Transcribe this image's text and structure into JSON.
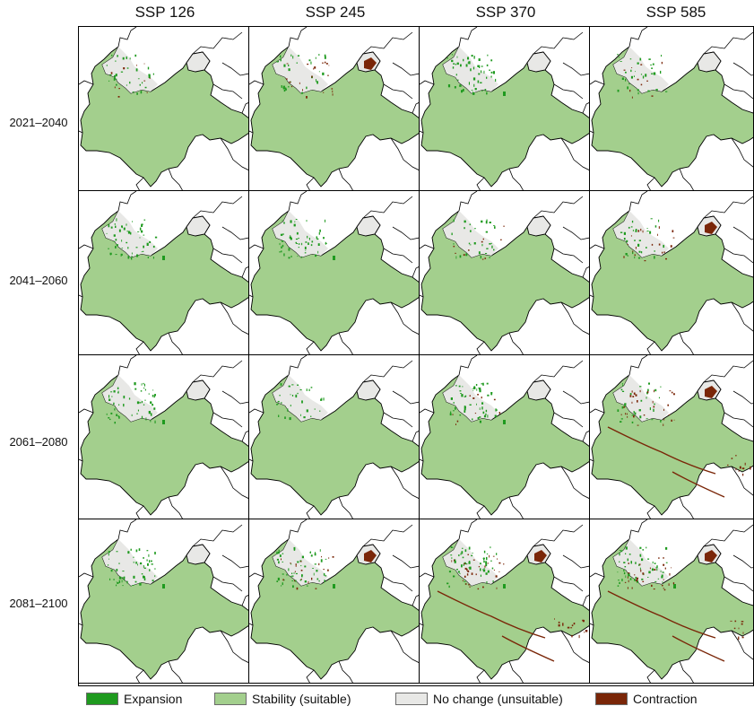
{
  "columns": [
    "SSP 126",
    "SSP 245",
    "SSP 370",
    "SSP 585"
  ],
  "rows": [
    "2021–2040",
    "2041–2060",
    "2061–2080",
    "2081–2100"
  ],
  "legend": [
    {
      "label": "Expansion",
      "color": "#1f9a1f"
    },
    {
      "label": "Stability (suitable)",
      "color": "#a3cf8d"
    },
    {
      "label": "No change (unsuitable)",
      "color": "#e8e8e6"
    },
    {
      "label": "Contraction",
      "color": "#7a2608"
    }
  ],
  "colors": {
    "border": "#000000",
    "background": "#ffffff"
  },
  "panel_change": [
    [
      {
        "expansion": "low",
        "contraction": "low"
      },
      {
        "expansion": "low",
        "contraction": "moderate"
      },
      {
        "expansion": "moderate",
        "contraction": "none"
      },
      {
        "expansion": "low",
        "contraction": "low"
      }
    ],
    [
      {
        "expansion": "moderate",
        "contraction": "none"
      },
      {
        "expansion": "moderate",
        "contraction": "none"
      },
      {
        "expansion": "low",
        "contraction": "low"
      },
      {
        "expansion": "low",
        "contraction": "moderate"
      }
    ],
    [
      {
        "expansion": "moderate",
        "contraction": "none"
      },
      {
        "expansion": "low",
        "contraction": "none"
      },
      {
        "expansion": "moderate",
        "contraction": "low"
      },
      {
        "expansion": "low",
        "contraction": "high"
      }
    ],
    [
      {
        "expansion": "moderate",
        "contraction": "none"
      },
      {
        "expansion": "moderate",
        "contraction": "moderate"
      },
      {
        "expansion": "moderate",
        "contraction": "high"
      },
      {
        "expansion": "moderate",
        "contraction": "high"
      }
    ]
  ]
}
